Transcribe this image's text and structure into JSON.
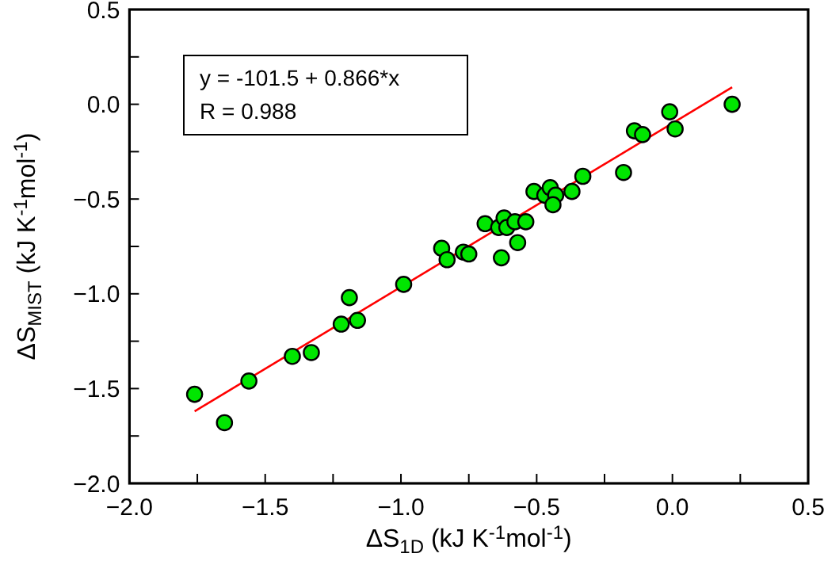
{
  "chart_data": {
    "type": "scatter",
    "xlabel": "ΔS$_{1D}$ (kJ K$^{-1}$mol$^{-1}$)",
    "ylabel": "ΔS$_{MIST}$ (kJ K$^{-1}$mol$^{-1}$)",
    "annotations": [
      "y = -101.5 + 0.866*x",
      "R = 0.988"
    ],
    "xlim": [
      -2,
      0.5
    ],
    "ylim": [
      -2,
      0.5
    ],
    "xticks": [
      {
        "value": -2,
        "label": "−2.0"
      },
      {
        "value": -1.75,
        "label": null
      },
      {
        "value": -1.5,
        "label": "−1.5"
      },
      {
        "value": -1.25,
        "label": null
      },
      {
        "value": -1,
        "label": "−1.0"
      },
      {
        "value": -0.75,
        "label": null
      },
      {
        "value": -0.5,
        "label": "−0.5"
      },
      {
        "value": -0.25,
        "label": null
      },
      {
        "value": 0,
        "label": "0.0"
      },
      {
        "value": 0.25,
        "label": null
      },
      {
        "value": 0.5,
        "label": "0.5"
      }
    ],
    "yticks": [
      {
        "value": -2,
        "label": "−2.0"
      },
      {
        "value": -1.75,
        "label": null
      },
      {
        "value": -1.5,
        "label": "−1.5"
      },
      {
        "value": -1.25,
        "label": null
      },
      {
        "value": -1,
        "label": "−1.0"
      },
      {
        "value": -0.75,
        "label": null
      },
      {
        "value": -0.5,
        "label": "−0.5"
      },
      {
        "value": -0.25,
        "label": null
      },
      {
        "value": 0,
        "label": "0.0"
      },
      {
        "value": 0.25,
        "label": null
      },
      {
        "value": 0.5,
        "label": "0.5"
      }
    ],
    "grid": false,
    "series": [
      {
        "color": "#00e600",
        "marker": "circle",
        "x": [
          -1.76,
          -1.65,
          -1.56,
          -1.4,
          -1.33,
          -1.22,
          -1.19,
          -1.16,
          -0.99,
          -0.85,
          -0.83,
          -0.77,
          -0.75,
          -0.69,
          -0.64,
          -0.63,
          -0.62,
          -0.61,
          -0.58,
          -0.57,
          -0.54,
          -0.51,
          -0.47,
          -0.45,
          -0.43,
          -0.44,
          -0.37,
          -0.33,
          -0.18,
          -0.14,
          -0.11,
          -0.01,
          0.01,
          0.22
        ],
        "values": [
          -1.53,
          -1.68,
          -1.46,
          -1.33,
          -1.31,
          -1.16,
          -1.02,
          -1.14,
          -0.95,
          -0.76,
          -0.82,
          -0.78,
          -0.79,
          -0.63,
          -0.65,
          -0.81,
          -0.6,
          -0.65,
          -0.62,
          -0.73,
          -0.62,
          -0.46,
          -0.48,
          -0.44,
          -0.48,
          -0.53,
          -0.46,
          -0.38,
          -0.36,
          -0.14,
          -0.16,
          -0.04,
          -0.13,
          0
        ]
      },
      {
        "type": "line",
        "color": "#ff0000",
        "x": [
          -1.76,
          0.22
        ],
        "values": [
          -1.62,
          0.09
        ],
        "line_style": "solid"
      }
    ]
  }
}
